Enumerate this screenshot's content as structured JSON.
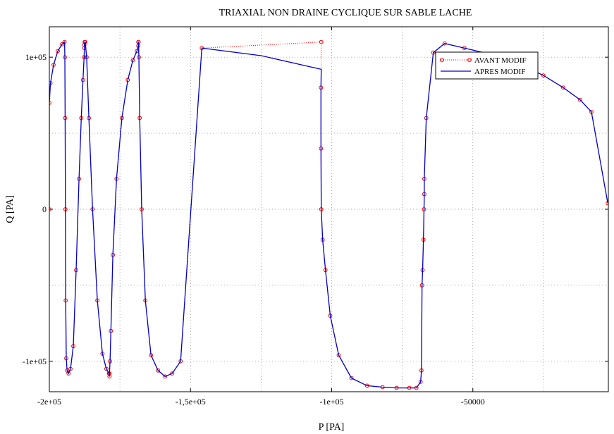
{
  "chart_data": {
    "type": "line",
    "title": "TRIAXIAL NON DRAINE CYCLIQUE SUR SABLE LACHE",
    "xlabel": "P [PA]",
    "ylabel": "Q [PA]",
    "xlim": [
      -200000,
      -2000
    ],
    "ylim": [
      -120000,
      120000
    ],
    "grid": true,
    "legend_position": "top-right",
    "x_ticks": [
      {
        "value": -200000,
        "label": "-2e+05"
      },
      {
        "value": -150000,
        "label": "-1,5e+05"
      },
      {
        "value": -100000,
        "label": "-1e+05"
      },
      {
        "value": -50000,
        "label": "-50000"
      }
    ],
    "y_ticks": [
      {
        "value": -100000,
        "label": "-1e+05"
      },
      {
        "value": 0,
        "label": "0"
      },
      {
        "value": 100000,
        "label": "1e+05"
      }
    ],
    "colors": {
      "avant": "#ff0000",
      "apres": "#0000cc"
    },
    "series": [
      {
        "name": "AVANT MODIF",
        "style": "dotted-circles",
        "x": [
          -200000,
          -200000,
          -199600,
          -198500,
          -197000,
          -195500,
          -194600,
          -194500,
          -194400,
          -194300,
          -194200,
          -194000,
          -193700,
          -193200,
          -192500,
          -191500,
          -190500,
          -189500,
          -188700,
          -188100,
          -187700,
          -187600,
          -187600,
          -187500,
          -187300,
          -186800,
          -186000,
          -184700,
          -183000,
          -181200,
          -179800,
          -178900,
          -178700,
          -178700,
          -178500,
          -178200,
          -177500,
          -176200,
          -174300,
          -172200,
          -170400,
          -169000,
          -168500,
          -168500,
          -168400,
          -168300,
          -168000,
          -167300,
          -166000,
          -164000,
          -161500,
          -159000,
          -156500,
          -153500,
          -146000,
          -103700,
          -103800,
          -103800,
          -103700,
          -103200,
          -102200,
          -100500,
          -97500,
          -93000,
          -87500,
          -82000,
          -77000,
          -72500,
          -70000,
          -68500,
          -68200,
          -68000,
          -67800,
          -67500,
          -67300,
          -67200,
          -67200,
          -66500,
          -64000,
          -60000,
          -53000,
          -44000,
          -34000,
          -25000,
          -18000,
          -12000,
          -8000,
          -2200
        ],
        "y": [
          0,
          70000,
          83000,
          95000,
          104000,
          108500,
          110000,
          100000,
          60000,
          0,
          -60000,
          -98000,
          -106000,
          -108000,
          -105000,
          -90000,
          -40000,
          20000,
          60000,
          85000,
          100000,
          106000,
          108000,
          110000,
          110000,
          100000,
          60000,
          0,
          -60000,
          -95000,
          -105000,
          -108000,
          -110000,
          -108000,
          -100000,
          -80000,
          -30000,
          20000,
          60000,
          85000,
          98000,
          104000,
          107500,
          110000,
          110000,
          100000,
          60000,
          0,
          -60000,
          -96000,
          -106000,
          -110000,
          -108000,
          -100000,
          106000,
          110000,
          80000,
          40000,
          0,
          -20000,
          -40000,
          -70000,
          -96000,
          -111000,
          -116000,
          -117000,
          -117500,
          -117500,
          -117500,
          -113500,
          -106000,
          -50000,
          -40000,
          -20000,
          0,
          10000,
          20000,
          60000,
          103000,
          109000,
          106000,
          102000,
          96000,
          88000,
          80000,
          72000,
          64000,
          4000
        ]
      },
      {
        "name": "APRES MODIF",
        "style": "solid",
        "x": [
          -200000,
          -200000,
          -199600,
          -198500,
          -197000,
          -195500,
          -194600,
          -194500,
          -194400,
          -194300,
          -194200,
          -194000,
          -193700,
          -193200,
          -192500,
          -191500,
          -190500,
          -189500,
          -188700,
          -188100,
          -187700,
          -187600,
          -187600,
          -187500,
          -187300,
          -186800,
          -186000,
          -184700,
          -183000,
          -181200,
          -179800,
          -178900,
          -178700,
          -178700,
          -178500,
          -178200,
          -177500,
          -176200,
          -174300,
          -172200,
          -170400,
          -169000,
          -168500,
          -168500,
          -168400,
          -168300,
          -168000,
          -167300,
          -166000,
          -164000,
          -161500,
          -159000,
          -156500,
          -153500,
          -146000,
          -125000,
          -103700,
          -103800,
          -103800,
          -103700,
          -103200,
          -102200,
          -100500,
          -97500,
          -93000,
          -87500,
          -82000,
          -77000,
          -72500,
          -70000,
          -68500,
          -68200,
          -68000,
          -67800,
          -67500,
          -67300,
          -67200,
          -67200,
          -66500,
          -64000,
          -60000,
          -53000,
          -44000,
          -34000,
          -25000,
          -18000,
          -12000,
          -8000,
          -2200
        ],
        "y": [
          0,
          70000,
          83000,
          95000,
          104000,
          108500,
          110000,
          100000,
          60000,
          0,
          -60000,
          -98000,
          -106000,
          -108000,
          -105000,
          -90000,
          -40000,
          20000,
          60000,
          85000,
          100000,
          106000,
          108000,
          110000,
          110000,
          100000,
          60000,
          0,
          -60000,
          -95000,
          -105000,
          -108000,
          -110000,
          -108000,
          -100000,
          -80000,
          -30000,
          20000,
          60000,
          85000,
          98000,
          104000,
          107500,
          110000,
          110000,
          100000,
          60000,
          0,
          -60000,
          -96000,
          -106000,
          -110000,
          -108000,
          -100000,
          106000,
          101000,
          92000,
          80000,
          40000,
          0,
          -20000,
          -40000,
          -70000,
          -96000,
          -111000,
          -116000,
          -117000,
          -117500,
          -117500,
          -117500,
          -113500,
          -106000,
          -50000,
          -40000,
          -20000,
          0,
          10000,
          20000,
          60000,
          103000,
          109000,
          106000,
          102000,
          96000,
          88000,
          80000,
          72000,
          64000,
          4000
        ]
      }
    ]
  }
}
